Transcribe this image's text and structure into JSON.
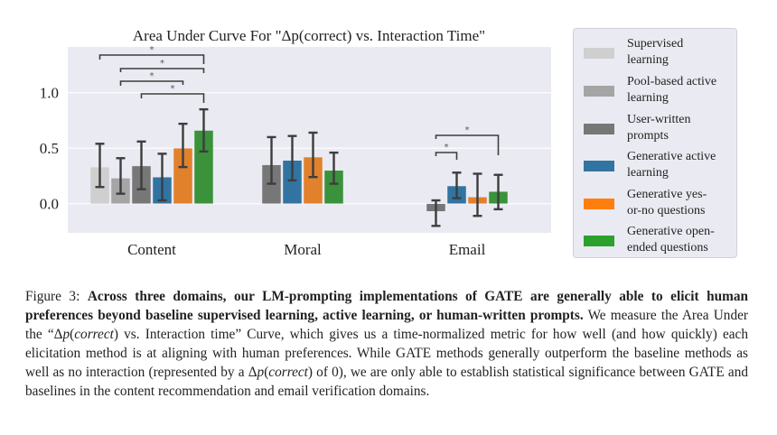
{
  "chart_data": {
    "type": "bar",
    "title": "Area Under Curve For \"Δp(correct) vs. Interaction Time\"",
    "xlabel": "",
    "ylabel": "",
    "ylim": [
      -0.27,
      1.4
    ],
    "yticks": [
      "0.0",
      "0.5",
      "1.0"
    ],
    "ytick_values": [
      0.0,
      0.5,
      1.0
    ],
    "grid": true,
    "legend_position": "right-outside",
    "categories": [
      "Content",
      "Moral",
      "Email"
    ],
    "series": [
      {
        "name": "Supervised learning",
        "color": "#cfcfcf",
        "values": [
          0.33,
          null,
          null
        ],
        "err_low": [
          0.15,
          null,
          null
        ],
        "err_high": [
          0.54,
          null,
          null
        ]
      },
      {
        "name": "Pool-based active learning",
        "color": "#a5a5a5",
        "values": [
          0.23,
          null,
          null
        ],
        "err_low": [
          0.09,
          null,
          null
        ],
        "err_high": [
          0.41,
          null,
          null
        ]
      },
      {
        "name": "User-written prompts",
        "color": "#777777",
        "values": [
          0.34,
          0.35,
          -0.07
        ],
        "err_low": [
          0.13,
          0.18,
          -0.2
        ],
        "err_high": [
          0.56,
          0.6,
          0.03
        ]
      },
      {
        "name": "Generative active learning",
        "color": "#3274a1",
        "values": [
          0.24,
          0.39,
          0.16
        ],
        "err_low": [
          0.03,
          0.21,
          0.05
        ],
        "err_high": [
          0.45,
          0.61,
          0.28
        ]
      },
      {
        "name": "Generative yes-or-no questions",
        "color": "#e1812c",
        "values": [
          0.5,
          0.42,
          0.06
        ],
        "err_low": [
          0.33,
          0.24,
          -0.11
        ],
        "err_high": [
          0.72,
          0.64,
          0.27
        ]
      },
      {
        "name": "Generative open-ended questions",
        "color": "#3a923a",
        "values": [
          0.66,
          0.3,
          0.11
        ],
        "err_low": [
          0.47,
          0.18,
          -0.05
        ],
        "err_high": [
          0.85,
          0.46,
          0.26
        ]
      }
    ],
    "significance_brackets": [
      {
        "category": "Content",
        "from_series": 0,
        "to_series": 5,
        "label": "*"
      },
      {
        "category": "Content",
        "from_series": 1,
        "to_series": 5,
        "label": "*"
      },
      {
        "category": "Content",
        "from_series": 1,
        "to_series": 4,
        "label": "*"
      },
      {
        "category": "Content",
        "from_series": 2,
        "to_series": 5,
        "label": "*"
      },
      {
        "category": "Email",
        "from_series": 2,
        "to_series": 5,
        "label": "*"
      },
      {
        "category": "Email",
        "from_series": 2,
        "to_series": 3,
        "label": "*"
      }
    ]
  },
  "legend": {
    "items": [
      {
        "line1": "Supervised",
        "line2": "learning"
      },
      {
        "line1": "Pool-based active",
        "line2": "learning"
      },
      {
        "line1": "User-written",
        "line2": "prompts"
      },
      {
        "line1": "Generative active",
        "line2": "learning"
      },
      {
        "line1": "Generative yes-",
        "line2": "or-no questions"
      },
      {
        "line1": "Generative open-",
        "line2": "ended questions"
      }
    ]
  },
  "caption": {
    "label": "Figure 3:",
    "bold": "Across three domains, our LM-prompting implementations of GATE are generally able to elicit human preferences beyond baseline supervised learning, active learning, or human-written prompts.",
    "part1": "We measure the Area Under the “",
    "math1_delta": "Δ",
    "math1_var": "p",
    "math1_arg": "correct",
    "part2": ") vs. Interaction time” Curve, which gives us a time-normalized metric for how well (and how quickly) each elicitation method is at aligning with human preferences. While GATE methods generally outperform the baseline methods as well as no interaction (represented by a ",
    "part3": ") of 0), we are only able to establish statistical significance between GATE and baselines in the content recommendation and email verification domains."
  }
}
